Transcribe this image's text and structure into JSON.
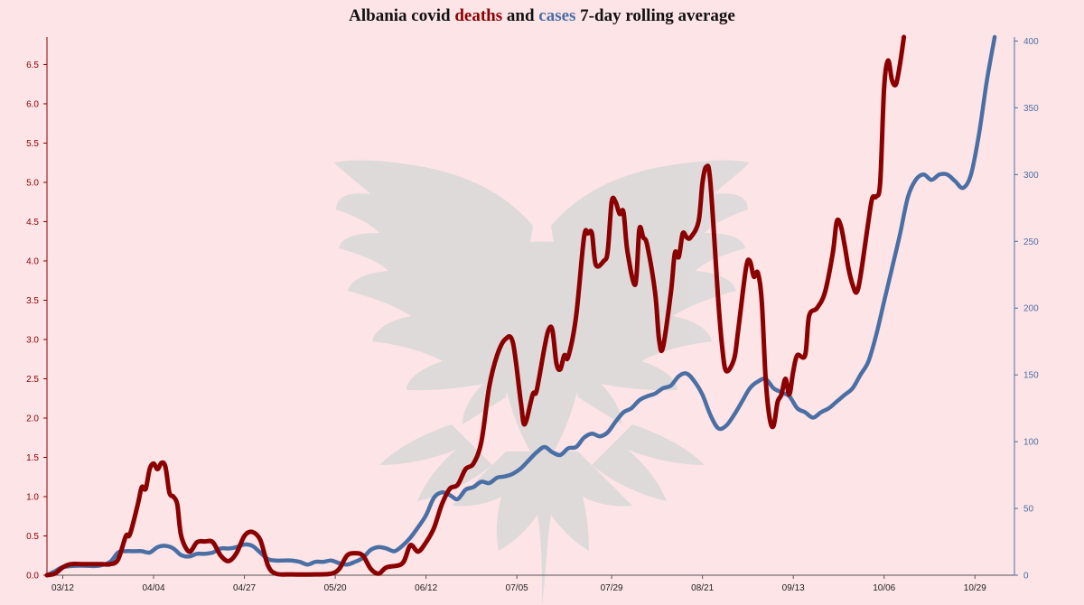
{
  "title": {
    "prefix": "Albania covid ",
    "deaths_word": "deaths",
    "middle": " and ",
    "cases_word": "cases",
    "suffix": " 7-day rolling average"
  },
  "colors": {
    "background": "#fde4e6",
    "deaths": "#8b0000",
    "cases": "#4a6fa5",
    "watermark": "#d9d9d9"
  },
  "watermark_icon": "double-headed-eagle",
  "chart_data": {
    "type": "line",
    "x_tick_labels": [
      "03/12",
      "04/04",
      "04/27",
      "05/20",
      "06/12",
      "07/05",
      "07/29",
      "08/21",
      "09/13",
      "10/06",
      "10/29"
    ],
    "x_tick_days": [
      0,
      23,
      46,
      69,
      92,
      115,
      139,
      162,
      185,
      208,
      231
    ],
    "x_range_days": [
      -4,
      241
    ],
    "y_left": {
      "ticks": [
        "0.0",
        "0.5",
        "1.0",
        "1.5",
        "2.0",
        "2.5",
        "3.0",
        "3.5",
        "4.0",
        "4.5",
        "5.0",
        "5.5",
        "6.0",
        "6.5"
      ],
      "range": [
        0,
        6.85
      ]
    },
    "y_right": {
      "ticks": [
        "0",
        "50",
        "100",
        "150",
        "200",
        "250",
        "300",
        "350",
        "400"
      ],
      "range": [
        0,
        403
      ]
    },
    "grid": false,
    "series": [
      {
        "name": "deaths",
        "axis": "left",
        "points": [
          [
            -4,
            0.0
          ],
          [
            -2,
            0.02
          ],
          [
            0,
            0.1
          ],
          [
            2,
            0.14
          ],
          [
            5,
            0.14
          ],
          [
            8,
            0.14
          ],
          [
            10,
            0.14
          ],
          [
            12,
            0.14
          ],
          [
            14,
            0.2
          ],
          [
            16,
            0.5
          ],
          [
            17,
            0.52
          ],
          [
            19,
            0.9
          ],
          [
            20,
            1.12
          ],
          [
            21,
            1.1
          ],
          [
            22,
            1.35
          ],
          [
            23,
            1.42
          ],
          [
            24,
            1.35
          ],
          [
            25,
            1.43
          ],
          [
            26,
            1.38
          ],
          [
            27,
            1.05
          ],
          [
            28,
            1.0
          ],
          [
            29,
            0.9
          ],
          [
            30,
            0.5
          ],
          [
            32,
            0.3
          ],
          [
            34,
            0.42
          ],
          [
            36,
            0.43
          ],
          [
            38,
            0.42
          ],
          [
            40,
            0.25
          ],
          [
            42,
            0.18
          ],
          [
            44,
            0.28
          ],
          [
            46,
            0.5
          ],
          [
            48,
            0.55
          ],
          [
            50,
            0.45
          ],
          [
            52,
            0.12
          ],
          [
            54,
            0.02
          ],
          [
            58,
            0.01
          ],
          [
            64,
            0.01
          ],
          [
            68,
            0.02
          ],
          [
            70,
            0.08
          ],
          [
            72,
            0.25
          ],
          [
            74,
            0.28
          ],
          [
            76,
            0.25
          ],
          [
            78,
            0.08
          ],
          [
            80,
            0.02
          ],
          [
            82,
            0.1
          ],
          [
            86,
            0.15
          ],
          [
            88,
            0.38
          ],
          [
            90,
            0.3
          ],
          [
            92,
            0.42
          ],
          [
            94,
            0.6
          ],
          [
            96,
            0.9
          ],
          [
            98,
            1.1
          ],
          [
            100,
            1.15
          ],
          [
            102,
            1.35
          ],
          [
            104,
            1.42
          ],
          [
            106,
            1.7
          ],
          [
            108,
            2.4
          ],
          [
            110,
            2.8
          ],
          [
            112,
            3.0
          ],
          [
            114,
            2.96
          ],
          [
            116,
            2.2
          ],
          [
            117,
            1.92
          ],
          [
            119,
            2.3
          ],
          [
            120,
            2.35
          ],
          [
            122,
            2.9
          ],
          [
            123,
            3.12
          ],
          [
            124,
            3.12
          ],
          [
            125,
            2.7
          ],
          [
            126,
            2.62
          ],
          [
            127,
            2.8
          ],
          [
            128,
            2.78
          ],
          [
            130,
            3.3
          ],
          [
            132,
            4.3
          ],
          [
            133,
            4.35
          ],
          [
            134,
            4.35
          ],
          [
            135,
            3.95
          ],
          [
            137,
            4.0
          ],
          [
            138,
            4.12
          ],
          [
            139,
            4.75
          ],
          [
            140,
            4.75
          ],
          [
            141,
            4.6
          ],
          [
            142,
            4.62
          ],
          [
            143,
            4.12
          ],
          [
            145,
            3.7
          ],
          [
            146,
            4.4
          ],
          [
            147,
            4.3
          ],
          [
            148,
            4.2
          ],
          [
            150,
            3.6
          ],
          [
            151,
            3.0
          ],
          [
            152,
            2.9
          ],
          [
            154,
            3.6
          ],
          [
            155,
            4.1
          ],
          [
            156,
            4.05
          ],
          [
            157,
            4.35
          ],
          [
            158,
            4.3
          ],
          [
            159,
            4.3
          ],
          [
            161,
            4.5
          ],
          [
            162,
            5.0
          ],
          [
            163,
            5.2
          ],
          [
            164,
            5.0
          ],
          [
            166,
            3.5
          ],
          [
            167,
            2.9
          ],
          [
            168,
            2.6
          ],
          [
            170,
            2.75
          ],
          [
            171,
            3.1
          ],
          [
            173,
            3.9
          ],
          [
            174,
            4.0
          ],
          [
            175,
            3.8
          ],
          [
            176,
            3.85
          ],
          [
            177,
            3.5
          ],
          [
            178,
            2.5
          ],
          [
            179,
            2.0
          ],
          [
            180,
            1.9
          ],
          [
            181,
            2.2
          ],
          [
            182,
            2.3
          ],
          [
            183,
            2.5
          ],
          [
            184,
            2.3
          ],
          [
            185,
            2.6
          ],
          [
            186,
            2.8
          ],
          [
            188,
            2.8
          ],
          [
            189,
            3.3
          ],
          [
            191,
            3.4
          ],
          [
            193,
            3.6
          ],
          [
            195,
            4.1
          ],
          [
            196,
            4.5
          ],
          [
            197,
            4.45
          ],
          [
            198,
            4.2
          ],
          [
            199,
            3.9
          ],
          [
            200,
            3.7
          ],
          [
            201,
            3.6
          ],
          [
            202,
            3.8
          ],
          [
            204,
            4.5
          ],
          [
            205,
            4.8
          ],
          [
            206,
            4.82
          ],
          [
            207,
            5.0
          ],
          [
            208,
            6.2
          ],
          [
            209,
            6.55
          ],
          [
            210,
            6.3
          ],
          [
            211,
            6.25
          ],
          [
            212,
            6.5
          ],
          [
            213,
            6.85
          ]
        ]
      },
      {
        "name": "cases",
        "axis": "right",
        "points": [
          [
            -4,
            0
          ],
          [
            -2,
            3
          ],
          [
            0,
            6
          ],
          [
            3,
            7
          ],
          [
            6,
            7
          ],
          [
            9,
            7
          ],
          [
            12,
            10
          ],
          [
            14,
            17
          ],
          [
            16,
            18
          ],
          [
            18,
            18
          ],
          [
            20,
            18
          ],
          [
            22,
            17
          ],
          [
            24,
            21
          ],
          [
            26,
            22
          ],
          [
            28,
            20
          ],
          [
            30,
            15
          ],
          [
            32,
            14
          ],
          [
            34,
            16
          ],
          [
            36,
            16
          ],
          [
            38,
            17
          ],
          [
            40,
            20
          ],
          [
            42,
            20
          ],
          [
            44,
            21
          ],
          [
            46,
            23
          ],
          [
            48,
            22
          ],
          [
            50,
            17
          ],
          [
            52,
            12
          ],
          [
            54,
            11
          ],
          [
            56,
            11
          ],
          [
            58,
            11
          ],
          [
            60,
            10
          ],
          [
            62,
            8
          ],
          [
            64,
            10
          ],
          [
            66,
            10
          ],
          [
            68,
            11
          ],
          [
            70,
            9
          ],
          [
            72,
            8
          ],
          [
            74,
            10
          ],
          [
            76,
            13
          ],
          [
            78,
            19
          ],
          [
            80,
            21
          ],
          [
            82,
            20
          ],
          [
            84,
            18
          ],
          [
            86,
            22
          ],
          [
            88,
            28
          ],
          [
            90,
            36
          ],
          [
            92,
            45
          ],
          [
            94,
            58
          ],
          [
            96,
            62
          ],
          [
            98,
            60
          ],
          [
            100,
            57
          ],
          [
            102,
            64
          ],
          [
            104,
            66
          ],
          [
            106,
            70
          ],
          [
            108,
            69
          ],
          [
            110,
            73
          ],
          [
            112,
            74
          ],
          [
            114,
            76
          ],
          [
            116,
            80
          ],
          [
            118,
            86
          ],
          [
            120,
            92
          ],
          [
            122,
            96
          ],
          [
            124,
            92
          ],
          [
            126,
            90
          ],
          [
            128,
            95
          ],
          [
            130,
            96
          ],
          [
            132,
            103
          ],
          [
            134,
            106
          ],
          [
            136,
            104
          ],
          [
            138,
            107
          ],
          [
            140,
            115
          ],
          [
            142,
            122
          ],
          [
            144,
            125
          ],
          [
            146,
            131
          ],
          [
            148,
            134
          ],
          [
            150,
            136
          ],
          [
            152,
            140
          ],
          [
            154,
            142
          ],
          [
            156,
            149
          ],
          [
            158,
            151
          ],
          [
            160,
            145
          ],
          [
            162,
            135
          ],
          [
            164,
            120
          ],
          [
            166,
            110
          ],
          [
            168,
            112
          ],
          [
            170,
            120
          ],
          [
            172,
            130
          ],
          [
            174,
            140
          ],
          [
            176,
            145
          ],
          [
            178,
            147
          ],
          [
            180,
            140
          ],
          [
            182,
            137
          ],
          [
            184,
            134
          ],
          [
            186,
            125
          ],
          [
            188,
            122
          ],
          [
            190,
            118
          ],
          [
            192,
            122
          ],
          [
            194,
            125
          ],
          [
            196,
            130
          ],
          [
            198,
            135
          ],
          [
            200,
            140
          ],
          [
            202,
            150
          ],
          [
            204,
            160
          ],
          [
            206,
            180
          ],
          [
            208,
            205
          ],
          [
            210,
            230
          ],
          [
            212,
            255
          ],
          [
            214,
            283
          ],
          [
            216,
            296
          ],
          [
            218,
            300
          ],
          [
            220,
            296
          ],
          [
            222,
            300
          ],
          [
            224,
            300
          ],
          [
            226,
            295
          ],
          [
            228,
            290
          ],
          [
            230,
            300
          ],
          [
            232,
            330
          ],
          [
            234,
            370
          ],
          [
            236,
            403
          ]
        ]
      }
    ]
  }
}
